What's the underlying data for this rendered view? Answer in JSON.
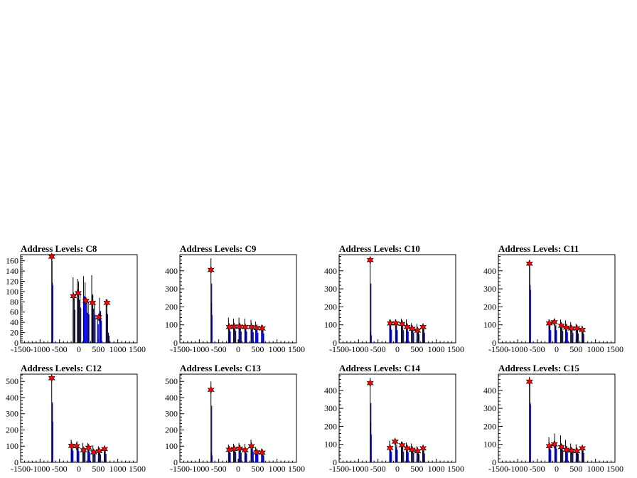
{
  "chart_data": [
    {
      "type": "histogram",
      "title": "Address Levels: C8",
      "xlim": [
        -1500,
        1500
      ],
      "ylim": [
        0,
        172
      ],
      "yticks": [
        0,
        20,
        40,
        60,
        80,
        100,
        120,
        140,
        160
      ],
      "xticks": [
        -1500,
        -1000,
        -500,
        0,
        500,
        1000,
        1500
      ],
      "bars": [
        [
          -700,
          168
        ],
        [
          -690,
          160
        ],
        [
          -150,
          128
        ],
        [
          -120,
          92
        ],
        [
          -40,
          125
        ],
        [
          -10,
          120
        ],
        [
          30,
          98
        ],
        [
          120,
          130
        ],
        [
          160,
          118
        ],
        [
          200,
          84
        ],
        [
          240,
          80
        ],
        [
          330,
          132
        ],
        [
          360,
          95
        ],
        [
          400,
          78
        ],
        [
          480,
          52
        ],
        [
          530,
          88
        ],
        [
          560,
          62
        ],
        [
          700,
          85
        ],
        [
          720,
          80
        ],
        [
          760,
          20
        ]
      ],
      "peaks": [
        [
          -700,
          168
        ],
        [
          -140,
          91
        ],
        [
          -20,
          97
        ],
        [
          180,
          82
        ],
        [
          350,
          78
        ],
        [
          510,
          50
        ],
        [
          720,
          78
        ]
      ]
    },
    {
      "type": "histogram",
      "title": "Address Levels: C9",
      "xlim": [
        -1500,
        1500
      ],
      "ylim": [
        0,
        490
      ],
      "yticks": [
        0,
        100,
        200,
        300,
        400
      ],
      "xticks": [
        -1500,
        -1000,
        -500,
        0,
        500,
        1000,
        1500
      ],
      "bars": [
        [
          -700,
          470
        ],
        [
          -690,
          220
        ],
        [
          -250,
          140
        ],
        [
          -220,
          90
        ],
        [
          -120,
          135
        ],
        [
          -80,
          95
        ],
        [
          20,
          140
        ],
        [
          60,
          90
        ],
        [
          170,
          135
        ],
        [
          200,
          90
        ],
        [
          330,
          128
        ],
        [
          370,
          85
        ],
        [
          450,
          118
        ],
        [
          490,
          80
        ],
        [
          600,
          100
        ],
        [
          640,
          75
        ]
      ],
      "peaks": [
        [
          -700,
          405
        ],
        [
          -230,
          88
        ],
        [
          -100,
          90
        ],
        [
          40,
          90
        ],
        [
          180,
          88
        ],
        [
          340,
          88
        ],
        [
          480,
          82
        ],
        [
          620,
          80
        ]
      ]
    },
    {
      "type": "histogram",
      "title": "Address Levels: C10",
      "xlim": [
        -1500,
        1500
      ],
      "ylim": [
        0,
        490
      ],
      "yticks": [
        0,
        100,
        200,
        300,
        400
      ],
      "xticks": [
        -1500,
        -1000,
        -500,
        0,
        500,
        1000,
        1500
      ],
      "bars": [
        [
          -700,
          470
        ],
        [
          -690,
          60
        ],
        [
          -200,
          130
        ],
        [
          -170,
          105
        ],
        [
          -50,
          130
        ],
        [
          -20,
          100
        ],
        [
          100,
          135
        ],
        [
          140,
          100
        ],
        [
          230,
          130
        ],
        [
          260,
          90
        ],
        [
          360,
          110
        ],
        [
          400,
          80
        ],
        [
          500,
          105
        ],
        [
          540,
          70
        ],
        [
          650,
          100
        ],
        [
          680,
          80
        ]
      ],
      "peaks": [
        [
          -700,
          460
        ],
        [
          -180,
          108
        ],
        [
          -40,
          108
        ],
        [
          120,
          105
        ],
        [
          250,
          88
        ],
        [
          380,
          78
        ],
        [
          520,
          68
        ],
        [
          660,
          88
        ]
      ]
    },
    {
      "type": "histogram",
      "title": "Address Levels: C11",
      "xlim": [
        -1500,
        1500
      ],
      "ylim": [
        0,
        490
      ],
      "yticks": [
        0,
        100,
        200,
        300,
        400
      ],
      "xticks": [
        -1500,
        -1000,
        -500,
        0,
        500,
        1000,
        1500
      ],
      "bars": [
        [
          -700,
          460
        ],
        [
          -690,
          420
        ],
        [
          -200,
          130
        ],
        [
          -170,
          100
        ],
        [
          -50,
          135
        ],
        [
          -20,
          100
        ],
        [
          100,
          130
        ],
        [
          140,
          95
        ],
        [
          230,
          125
        ],
        [
          260,
          85
        ],
        [
          360,
          115
        ],
        [
          400,
          80
        ],
        [
          500,
          105
        ],
        [
          540,
          75
        ],
        [
          650,
          95
        ],
        [
          680,
          70
        ]
      ],
      "peaks": [
        [
          -700,
          440
        ],
        [
          -190,
          108
        ],
        [
          -60,
          115
        ],
        [
          120,
          95
        ],
        [
          250,
          85
        ],
        [
          380,
          80
        ],
        [
          520,
          80
        ],
        [
          660,
          72
        ]
      ]
    },
    {
      "type": "histogram",
      "title": "Address Levels: C12",
      "xlim": [
        -1500,
        1500
      ],
      "ylim": [
        0,
        545
      ],
      "yticks": [
        0,
        100,
        200,
        300,
        400,
        500
      ],
      "xticks": [
        -1500,
        -1000,
        -500,
        0,
        500,
        1000,
        1500
      ],
      "bars": [
        [
          -700,
          530
        ],
        [
          -690,
          360
        ],
        [
          -200,
          140
        ],
        [
          -170,
          105
        ],
        [
          -50,
          130
        ],
        [
          -20,
          100
        ],
        [
          100,
          120
        ],
        [
          140,
          90
        ],
        [
          230,
          120
        ],
        [
          260,
          90
        ],
        [
          360,
          105
        ],
        [
          400,
          70
        ],
        [
          500,
          100
        ],
        [
          540,
          70
        ],
        [
          650,
          95
        ],
        [
          680,
          75
        ]
      ],
      "peaks": [
        [
          -700,
          520
        ],
        [
          -190,
          102
        ],
        [
          -60,
          100
        ],
        [
          120,
          75
        ],
        [
          250,
          90
        ],
        [
          380,
          62
        ],
        [
          520,
          70
        ],
        [
          660,
          82
        ]
      ]
    },
    {
      "type": "histogram",
      "title": "Address Levels: C13",
      "xlim": [
        -1500,
        1500
      ],
      "ylim": [
        0,
        545
      ],
      "yticks": [
        0,
        100,
        200,
        300,
        400,
        500
      ],
      "xticks": [
        -1500,
        -1000,
        -500,
        0,
        500,
        1000,
        1500
      ],
      "bars": [
        [
          -700,
          500
        ],
        [
          -690,
          60
        ],
        [
          -250,
          110
        ],
        [
          -220,
          85
        ],
        [
          -120,
          115
        ],
        [
          -80,
          90
        ],
        [
          20,
          120
        ],
        [
          60,
          85
        ],
        [
          170,
          115
        ],
        [
          200,
          80
        ],
        [
          330,
          140
        ],
        [
          370,
          95
        ],
        [
          450,
          95
        ],
        [
          490,
          70
        ],
        [
          600,
          85
        ],
        [
          640,
          60
        ]
      ],
      "peaks": [
        [
          -700,
          448
        ],
        [
          -230,
          78
        ],
        [
          -100,
          82
        ],
        [
          40,
          85
        ],
        [
          180,
          75
        ],
        [
          340,
          100
        ],
        [
          480,
          62
        ],
        [
          620,
          60
        ]
      ]
    },
    {
      "type": "histogram",
      "title": "Address Levels: C14",
      "xlim": [
        -1500,
        1500
      ],
      "ylim": [
        0,
        490
      ],
      "yticks": [
        0,
        100,
        200,
        300,
        400
      ],
      "xticks": [
        -1500,
        -1000,
        -500,
        0,
        500,
        1000,
        1500
      ],
      "bars": [
        [
          -700,
          470
        ],
        [
          -690,
          220
        ],
        [
          -200,
          120
        ],
        [
          -170,
          85
        ],
        [
          -50,
          120
        ],
        [
          -20,
          100
        ],
        [
          100,
          115
        ],
        [
          140,
          85
        ],
        [
          230,
          110
        ],
        [
          260,
          80
        ],
        [
          360,
          105
        ],
        [
          400,
          75
        ],
        [
          500,
          90
        ],
        [
          540,
          65
        ],
        [
          650,
          85
        ],
        [
          680,
          70
        ]
      ],
      "peaks": [
        [
          -700,
          440
        ],
        [
          -190,
          80
        ],
        [
          -60,
          115
        ],
        [
          120,
          95
        ],
        [
          250,
          78
        ],
        [
          380,
          70
        ],
        [
          520,
          62
        ],
        [
          660,
          78
        ]
      ]
    },
    {
      "type": "histogram",
      "title": "Address Levels: C15",
      "xlim": [
        -1500,
        1500
      ],
      "ylim": [
        0,
        490
      ],
      "yticks": [
        0,
        100,
        200,
        300,
        400
      ],
      "xticks": [
        -1500,
        -1000,
        -500,
        0,
        500,
        1000,
        1500
      ],
      "bars": [
        [
          -700,
          475
        ],
        [
          -690,
          460
        ],
        [
          -200,
          140
        ],
        [
          -170,
          100
        ],
        [
          -50,
          160
        ],
        [
          -20,
          110
        ],
        [
          100,
          150
        ],
        [
          140,
          100
        ],
        [
          230,
          125
        ],
        [
          260,
          90
        ],
        [
          360,
          105
        ],
        [
          400,
          80
        ],
        [
          500,
          100
        ],
        [
          540,
          70
        ],
        [
          650,
          90
        ],
        [
          680,
          75
        ]
      ],
      "peaks": [
        [
          -700,
          448
        ],
        [
          -190,
          90
        ],
        [
          -60,
          100
        ],
        [
          120,
          85
        ],
        [
          250,
          70
        ],
        [
          380,
          65
        ],
        [
          520,
          62
        ],
        [
          660,
          78
        ]
      ]
    }
  ],
  "colors": {
    "bar": "#0000ff",
    "spike": "#000000",
    "peak_marker": "#ff0000",
    "frame": "#000000"
  }
}
